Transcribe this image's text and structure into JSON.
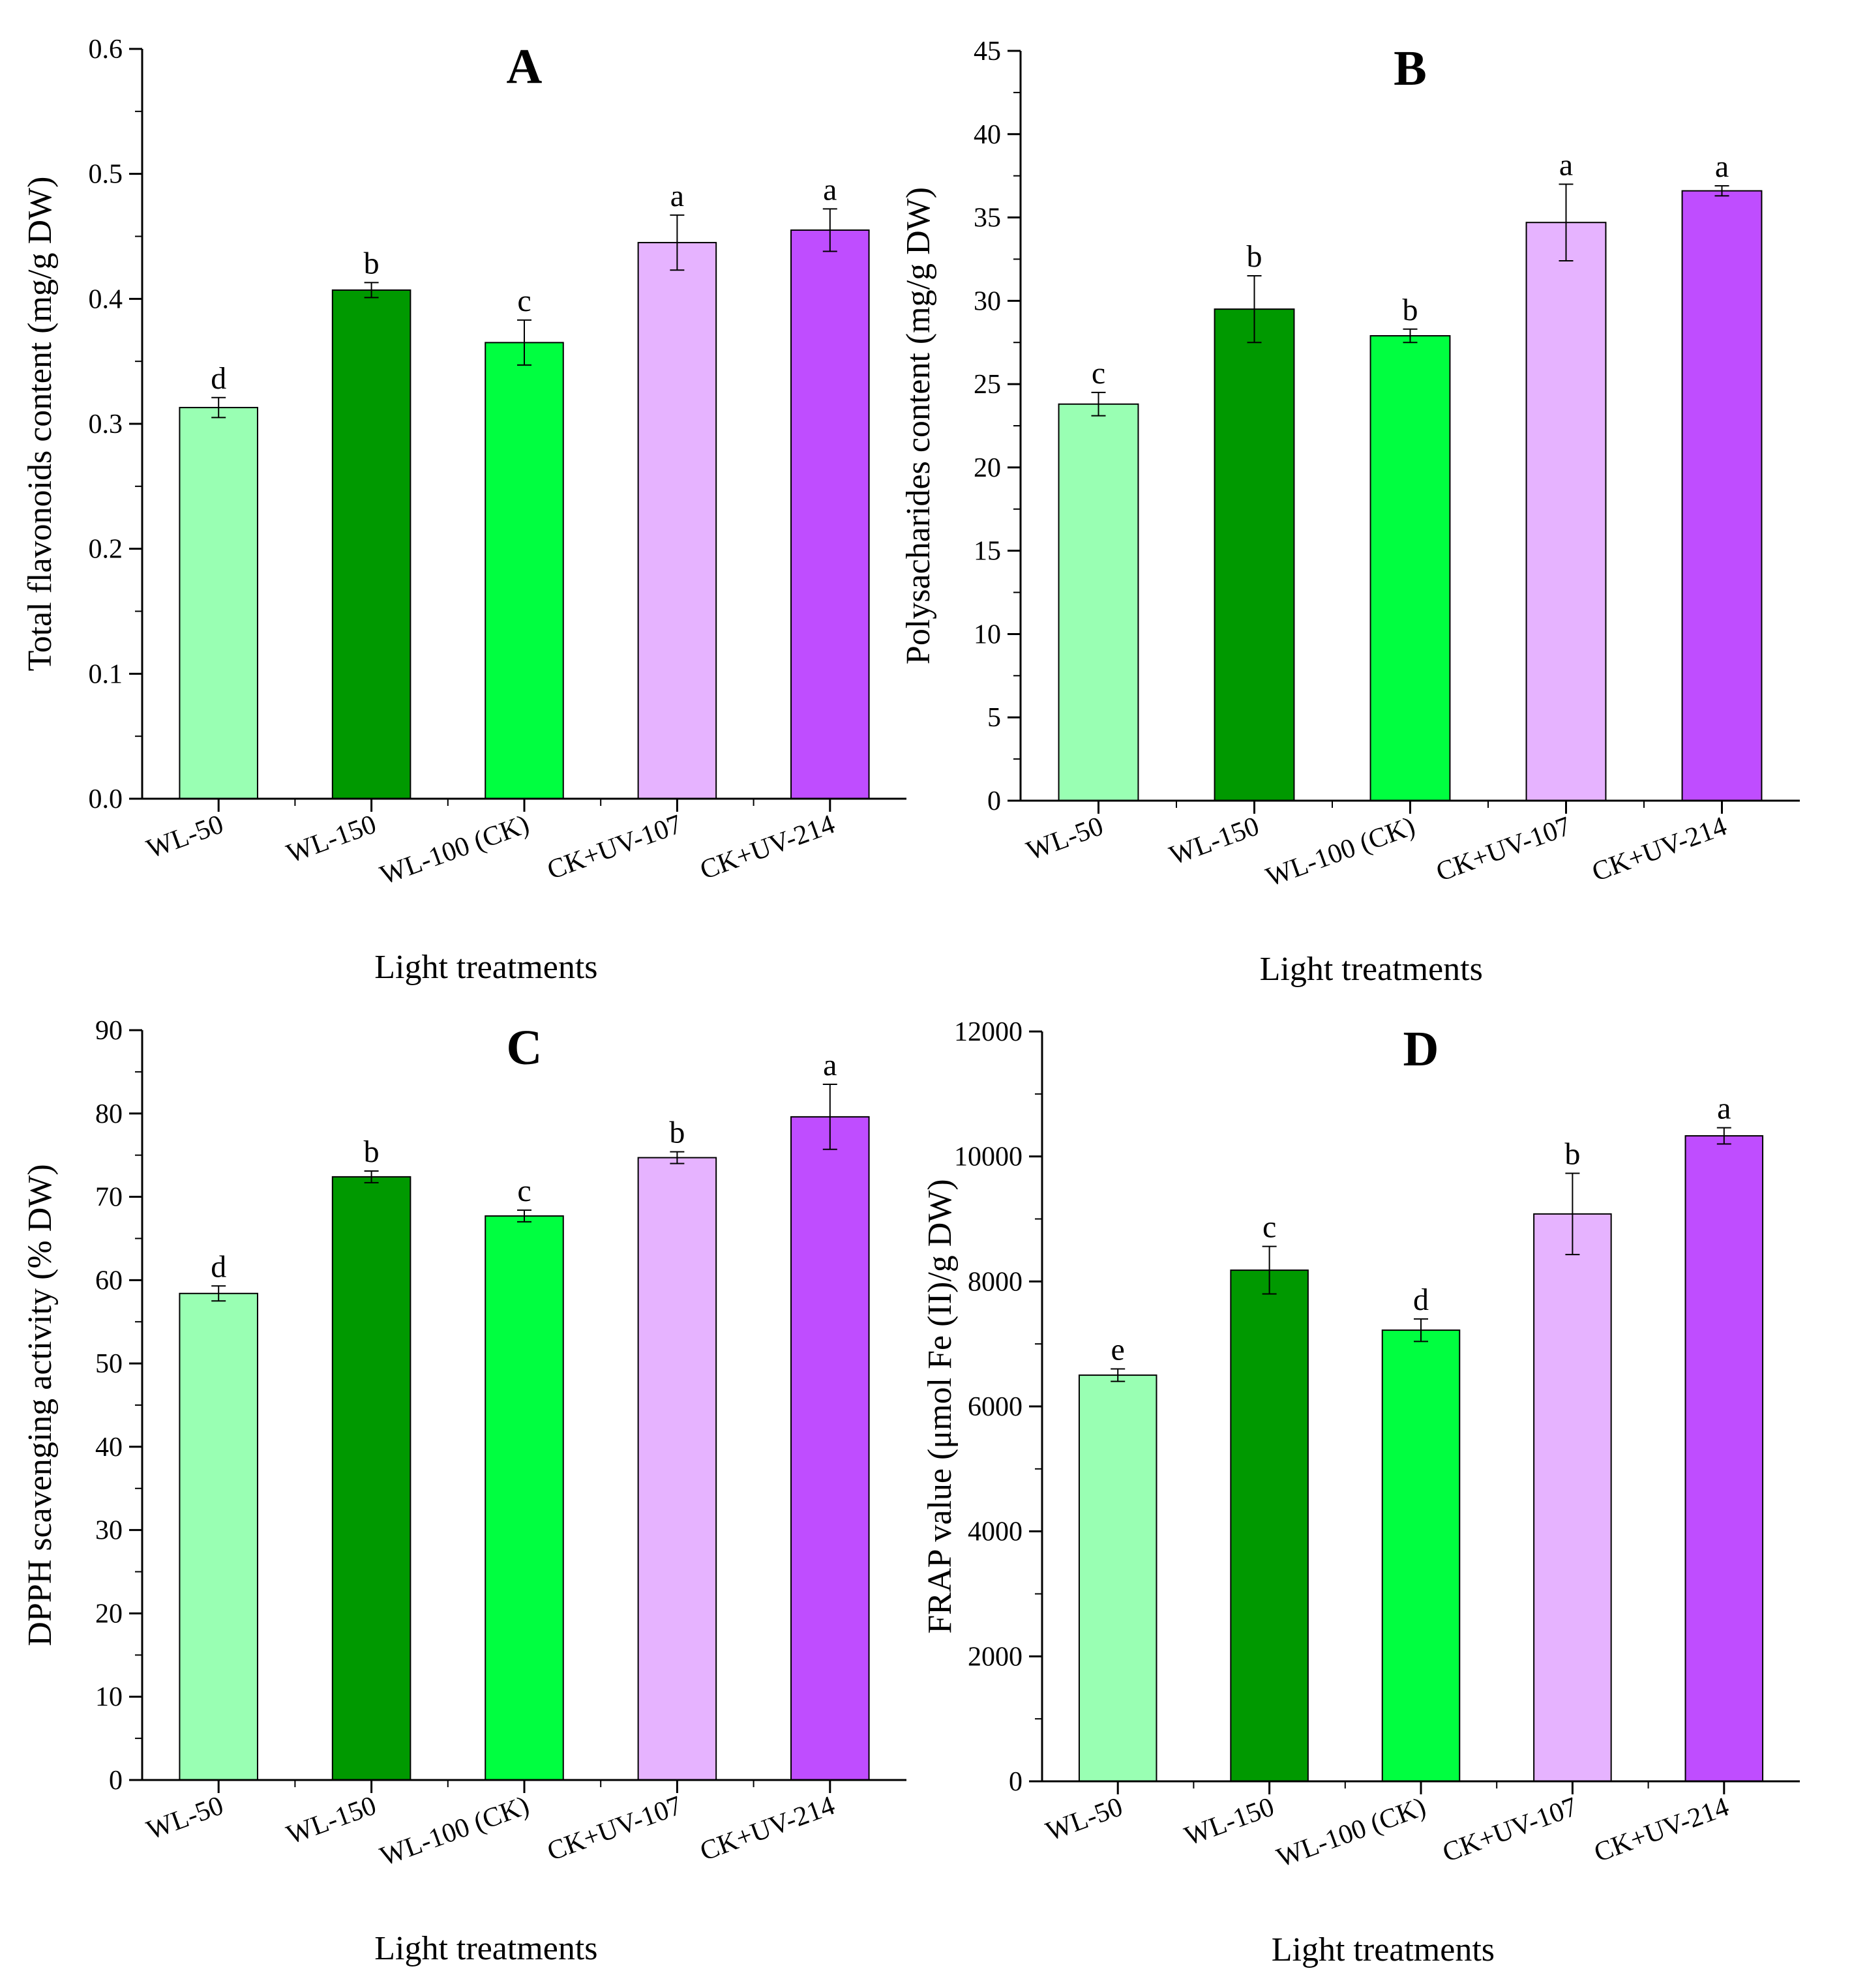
{
  "figure_title": "",
  "chart_data": [
    {
      "type": "bar",
      "panel": "A",
      "title": "A",
      "xlabel": "Light treatments",
      "ylabel": "Total flavonoids content (mg/g DW)",
      "categories": [
        "WL-50",
        "WL-150",
        "WL-100 (CK)",
        "CK+UV-107",
        "CK+UV-214"
      ],
      "values": [
        0.313,
        0.407,
        0.365,
        0.445,
        0.455
      ],
      "errors": [
        0.008,
        0.006,
        0.018,
        0.022,
        0.017
      ],
      "significance": [
        "d",
        "b",
        "c",
        "a",
        "a"
      ],
      "colors": [
        "#99ffb3",
        "#009900",
        "#00ff40",
        "#e6b3ff",
        "#bf4dff"
      ],
      "ylim": [
        0,
        0.6
      ],
      "yticks": [
        0.0,
        0.1,
        0.2,
        0.3,
        0.4,
        0.5,
        0.6
      ],
      "ytick_labels": [
        "0.0",
        "0.1",
        "0.2",
        "0.3",
        "0.4",
        "0.5",
        "0.6"
      ],
      "grid": false
    },
    {
      "type": "bar",
      "panel": "B",
      "title": "B",
      "xlabel": "Light treatments",
      "ylabel": "Polysacharides content (mg/g DW)",
      "categories": [
        "WL-50",
        "WL-150",
        "WL-100 (CK)",
        "CK+UV-107",
        "CK+UV-214"
      ],
      "values": [
        23.8,
        29.5,
        27.9,
        34.7,
        36.6
      ],
      "errors": [
        0.7,
        2.0,
        0.4,
        2.3,
        0.3
      ],
      "significance": [
        "c",
        "b",
        "b",
        "a",
        "a"
      ],
      "colors": [
        "#99ffb3",
        "#009900",
        "#00ff40",
        "#e6b3ff",
        "#bf4dff"
      ],
      "ylim": [
        0,
        45
      ],
      "yticks": [
        0,
        5,
        10,
        15,
        20,
        25,
        30,
        35,
        40,
        45
      ],
      "ytick_labels": [
        "0",
        "5",
        "10",
        "15",
        "20",
        "25",
        "30",
        "35",
        "40",
        "45"
      ],
      "grid": false
    },
    {
      "type": "bar",
      "panel": "C",
      "title": "C",
      "xlabel": "Light treatments",
      "ylabel": "DPPH scavenging activity (% DW)",
      "categories": [
        "WL-50",
        "WL-150",
        "WL-100 (CK)",
        "CK+UV-107",
        "CK+UV-214"
      ],
      "values": [
        58.4,
        72.4,
        67.7,
        74.7,
        79.6
      ],
      "errors": [
        0.9,
        0.7,
        0.7,
        0.7,
        3.9
      ],
      "significance": [
        "d",
        "b",
        "c",
        "b",
        "a"
      ],
      "colors": [
        "#99ffb3",
        "#009900",
        "#00ff40",
        "#e6b3ff",
        "#bf4dff"
      ],
      "ylim": [
        0,
        90
      ],
      "yticks": [
        0,
        10,
        20,
        30,
        40,
        50,
        60,
        70,
        80,
        90
      ],
      "ytick_labels": [
        "0",
        "10",
        "20",
        "30",
        "40",
        "50",
        "60",
        "70",
        "80",
        "90"
      ],
      "grid": false
    },
    {
      "type": "bar",
      "panel": "D",
      "title": "D",
      "xlabel": "Light treatments",
      "ylabel": "FRAP value (μmol Fe (II)/g DW)",
      "categories": [
        "WL-50",
        "WL-150",
        "WL-100 (CK)",
        "CK+UV-107",
        "CK+UV-214"
      ],
      "values": [
        6500,
        8180,
        7220,
        9080,
        10330
      ],
      "errors": [
        100,
        380,
        180,
        650,
        130
      ],
      "significance": [
        "e",
        "c",
        "d",
        "b",
        "a"
      ],
      "colors": [
        "#99ffb3",
        "#009900",
        "#00ff40",
        "#e6b3ff",
        "#bf4dff"
      ],
      "ylim": [
        0,
        12000
      ],
      "yticks": [
        0,
        2000,
        4000,
        6000,
        8000,
        10000,
        12000
      ],
      "ytick_labels": [
        "0",
        "2000",
        "4000",
        "6000",
        "8000",
        "10000",
        "12000"
      ],
      "grid": false
    }
  ]
}
